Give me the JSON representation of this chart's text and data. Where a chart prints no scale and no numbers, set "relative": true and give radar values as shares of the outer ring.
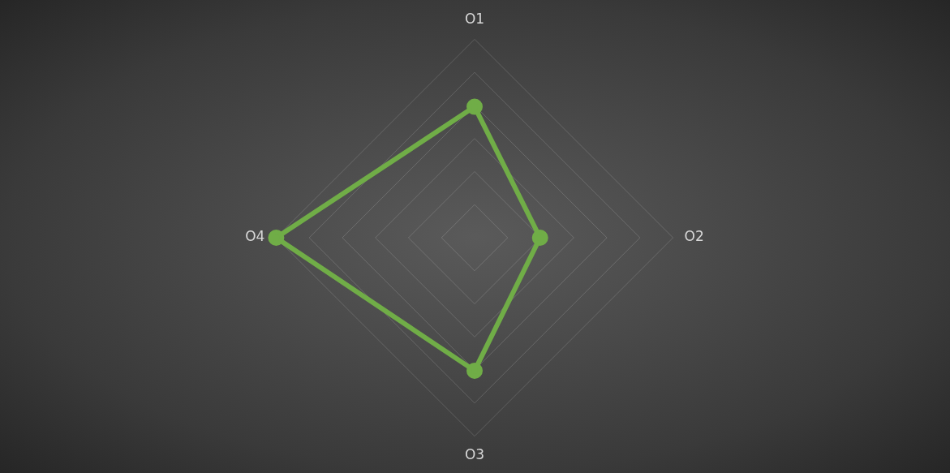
{
  "chart_data": {
    "type": "radar",
    "relative": true,
    "categories": [
      "O1",
      "O2",
      "O3",
      "O4"
    ],
    "series": [
      {
        "color": "#70ad47",
        "values": [
          0.66,
          0.33,
          0.67,
          1.0
        ]
      }
    ],
    "marker": "circle",
    "line_style": "solid",
    "grid": true,
    "legend": false
  }
}
